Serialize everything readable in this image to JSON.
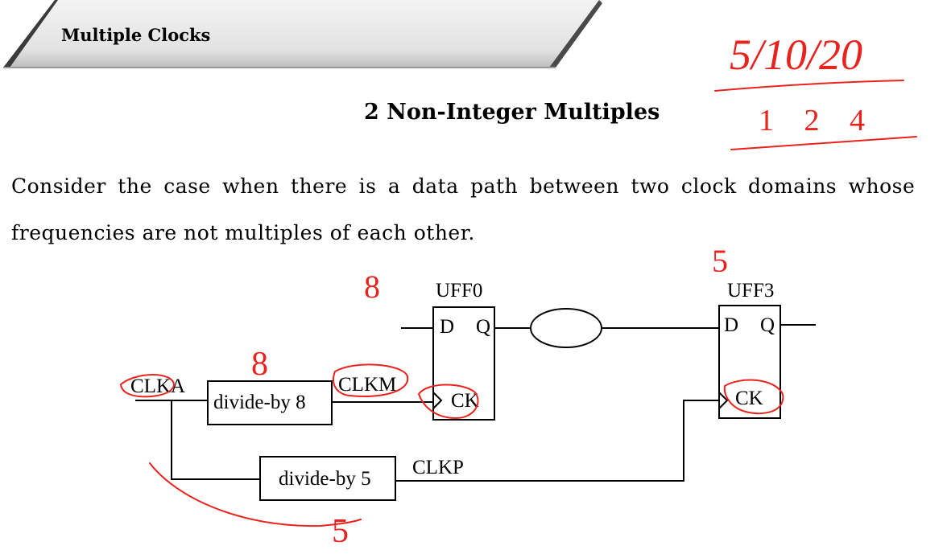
{
  "slide": {
    "section_title": "Multiple Clocks",
    "subtitle": "2 Non-Integer Multiples",
    "paragraph_line1": "Consider the case when there is a data path between two clock domains whose",
    "paragraph_line2": "frequencies are not multiples of each other."
  },
  "circuit": {
    "ff0_name": "UFF0",
    "ff3_name": "UFF3",
    "pin_d": "D",
    "pin_q": "Q",
    "pin_ck": "CK",
    "clka_label": "CLKA",
    "clkm_label": "CLKM",
    "clkp_label": "CLKP",
    "div8_label": "divide-by 8",
    "div5_label": "divide-by 5"
  },
  "annotations": {
    "date": "5/10/20",
    "ratio": "1 2 4",
    "note_div8": "8",
    "note_ff0": "8",
    "note_ff3": "5",
    "note_div5": "5"
  },
  "colors": {
    "ink": "#e8231e",
    "banner_dark": "#3a3a3a",
    "banner_light": "#d8d8d8"
  }
}
